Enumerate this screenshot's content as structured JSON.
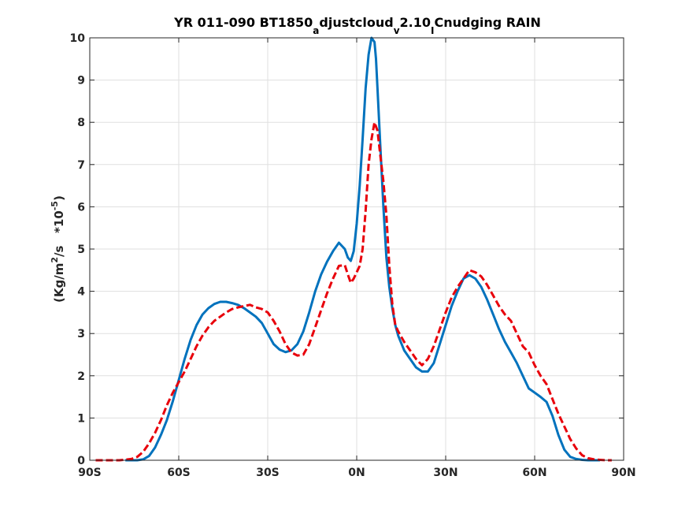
{
  "chart_data": {
    "type": "line",
    "title": {
      "p1": "YR 011-090 BT1850",
      "s1": "a",
      "p2": "djustcloud",
      "s2": "v",
      "p3": "2.10",
      "s3": "I",
      "p4": "Cnudging RAIN"
    },
    "ylabel": {
      "p1": "(Kg/m",
      "sup1": "2",
      "p2": "/s   *10",
      "sup2": "-5",
      "p3": ")"
    },
    "xlim": [
      -90,
      90
    ],
    "ylim": [
      0,
      10
    ],
    "x_ticks": [
      -90,
      -60,
      -30,
      0,
      30,
      60,
      90
    ],
    "x_tick_labels": [
      "90S",
      "60S",
      "30S",
      "0N",
      "30N",
      "60N",
      "90N"
    ],
    "y_ticks": [
      0,
      1,
      2,
      3,
      4,
      5,
      6,
      7,
      8,
      9,
      10
    ],
    "y_tick_labels": [
      "0",
      "1",
      "2",
      "3",
      "4",
      "5",
      "6",
      "7",
      "8",
      "9",
      "10"
    ],
    "grid": true,
    "series": [
      {
        "color": "#0072BD",
        "style": "solid",
        "x": [
          -78,
          -74,
          -72,
          -70,
          -68,
          -66,
          -64,
          -62,
          -60,
          -58,
          -56,
          -54,
          -52,
          -50,
          -48,
          -46,
          -44,
          -42,
          -40,
          -38,
          -36,
          -34,
          -32,
          -30,
          -28,
          -26,
          -24,
          -22,
          -20,
          -18,
          -16,
          -14,
          -12,
          -10,
          -8,
          -6,
          -4,
          -3,
          -2,
          -1,
          0,
          1,
          2,
          3,
          4,
          5,
          6,
          6.5,
          7,
          8,
          9,
          10,
          11,
          12,
          13,
          14,
          16,
          18,
          20,
          22,
          24,
          26,
          28,
          30,
          32,
          34,
          36,
          38,
          40,
          42,
          44,
          46,
          48,
          50,
          52,
          54,
          56,
          58,
          60,
          62,
          64,
          66,
          68,
          70,
          72,
          74,
          76,
          78,
          80,
          82
        ],
        "y": [
          0,
          0,
          0.02,
          0.1,
          0.3,
          0.6,
          0.95,
          1.4,
          1.9,
          2.4,
          2.85,
          3.2,
          3.45,
          3.6,
          3.7,
          3.75,
          3.75,
          3.72,
          3.68,
          3.6,
          3.5,
          3.4,
          3.25,
          3.0,
          2.75,
          2.62,
          2.56,
          2.6,
          2.75,
          3.05,
          3.5,
          4.0,
          4.4,
          4.7,
          4.95,
          5.15,
          5.0,
          4.8,
          4.72,
          4.95,
          5.6,
          6.5,
          7.6,
          8.8,
          9.6,
          10.0,
          9.9,
          9.5,
          8.8,
          7.4,
          6.0,
          4.8,
          4.1,
          3.6,
          3.2,
          2.95,
          2.6,
          2.4,
          2.2,
          2.1,
          2.1,
          2.3,
          2.75,
          3.2,
          3.65,
          4.0,
          4.3,
          4.38,
          4.3,
          4.1,
          3.8,
          3.45,
          3.1,
          2.8,
          2.55,
          2.3,
          2.0,
          1.7,
          1.6,
          1.5,
          1.38,
          1.05,
          0.6,
          0.25,
          0.08,
          0.03,
          0.01,
          0,
          0,
          0
        ]
      },
      {
        "color": "#E8000B",
        "style": "dashed",
        "x": [
          -88,
          -84,
          -80,
          -76,
          -74,
          -72,
          -70,
          -68,
          -66,
          -64,
          -62,
          -60,
          -58,
          -56,
          -54,
          -52,
          -50,
          -48,
          -46,
          -44,
          -42,
          -40,
          -38,
          -36,
          -34,
          -32,
          -30,
          -28,
          -26,
          -24,
          -22,
          -20,
          -18,
          -16,
          -14,
          -12,
          -10,
          -8,
          -6,
          -4,
          -3,
          -2,
          -1,
          0,
          1,
          2,
          3,
          4,
          5,
          6,
          7,
          8,
          9,
          10,
          11,
          12,
          13,
          14,
          16,
          18,
          20,
          22,
          24,
          26,
          28,
          30,
          32,
          34,
          36,
          38,
          40,
          42,
          44,
          46,
          48,
          50,
          52,
          54,
          56,
          58,
          60,
          62,
          64,
          66,
          68,
          70,
          72,
          74,
          76,
          78,
          80,
          82,
          84,
          86
        ],
        "y": [
          0,
          0,
          0,
          0.03,
          0.08,
          0.2,
          0.4,
          0.65,
          0.95,
          1.3,
          1.6,
          1.85,
          2.1,
          2.4,
          2.7,
          2.95,
          3.15,
          3.3,
          3.4,
          3.5,
          3.58,
          3.62,
          3.65,
          3.68,
          3.62,
          3.58,
          3.5,
          3.3,
          3.05,
          2.75,
          2.55,
          2.48,
          2.5,
          2.75,
          3.15,
          3.55,
          3.95,
          4.3,
          4.6,
          4.62,
          4.4,
          4.2,
          4.3,
          4.45,
          4.6,
          5.0,
          5.9,
          7.0,
          7.6,
          8.0,
          7.8,
          7.2,
          6.6,
          5.8,
          4.6,
          3.7,
          3.2,
          3.05,
          2.8,
          2.6,
          2.4,
          2.25,
          2.4,
          2.7,
          3.1,
          3.5,
          3.85,
          4.1,
          4.3,
          4.5,
          4.45,
          4.35,
          4.15,
          3.9,
          3.65,
          3.45,
          3.3,
          3.0,
          2.7,
          2.55,
          2.25,
          2.0,
          1.8,
          1.45,
          1.1,
          0.8,
          0.5,
          0.28,
          0.12,
          0.05,
          0.02,
          0.01,
          0,
          0
        ]
      }
    ]
  }
}
